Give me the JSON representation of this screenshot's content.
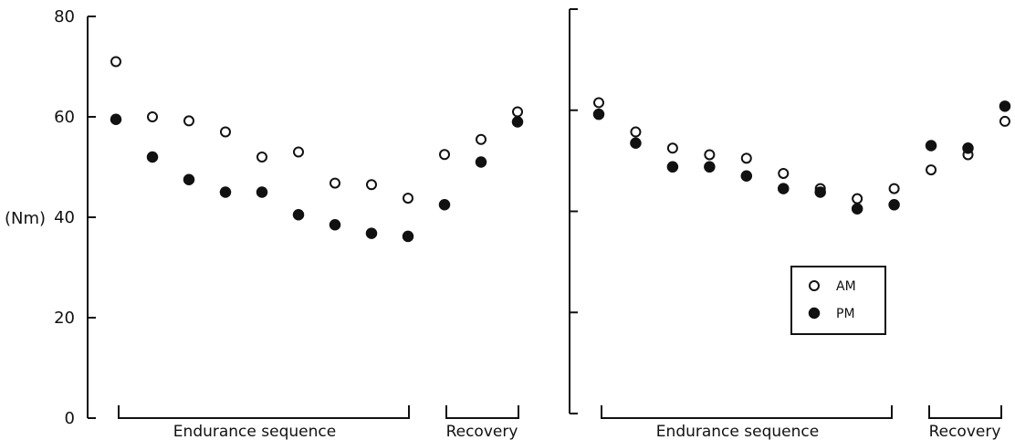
{
  "ylabel": "(Nm)",
  "legend": {
    "placement": "lower-right of right panel",
    "entries": [
      {
        "key": "am",
        "label": "AM"
      },
      {
        "key": "pm",
        "label": "PM"
      }
    ]
  },
  "chart_data": [
    {
      "type": "scatter",
      "panel": "left",
      "ylim": [
        0,
        80
      ],
      "yticks": [
        0,
        20,
        40,
        60,
        80
      ],
      "ytick_labels_shown": true,
      "groups": [
        {
          "label": "Endurance sequence",
          "from": 1,
          "to": 9
        },
        {
          "label": "Recovery",
          "from": 10,
          "to": 12
        }
      ],
      "x": [
        1,
        2,
        3,
        4,
        5,
        6,
        7,
        8,
        9,
        10,
        11,
        12
      ],
      "series": [
        {
          "name": "AM",
          "marker": "open-circle",
          "values": [
            71,
            60,
            59.2,
            57,
            52,
            53,
            46.8,
            46.5,
            43.8,
            52.5,
            55.5,
            61
          ]
        },
        {
          "name": "PM",
          "marker": "filled-circle",
          "values": [
            59.5,
            52,
            47.5,
            45,
            45,
            40.5,
            38.5,
            36.8,
            36.2,
            42.5,
            51,
            59
          ]
        }
      ]
    },
    {
      "type": "scatter",
      "panel": "right",
      "ylim": [
        0,
        80
      ],
      "yticks": [
        0,
        20,
        40,
        60,
        80
      ],
      "ytick_labels_shown": false,
      "groups": [
        {
          "label": "Endurance sequence",
          "from": 1,
          "to": 9
        },
        {
          "label": "Recovery",
          "from": 10,
          "to": 12
        }
      ],
      "x": [
        1,
        2,
        3,
        4,
        5,
        6,
        7,
        8,
        9,
        10,
        11,
        12
      ],
      "series": [
        {
          "name": "AM",
          "marker": "open-circle",
          "values": [
            61.5,
            55.7,
            52.5,
            51.2,
            50.5,
            47.5,
            44.5,
            42.5,
            44.5,
            48.2,
            51.2,
            57.8
          ]
        },
        {
          "name": "PM",
          "marker": "filled-circle",
          "values": [
            59.2,
            53.5,
            48.8,
            48.8,
            47,
            44.5,
            43.8,
            40.5,
            41.3,
            53,
            52.5,
            60.8
          ]
        }
      ]
    }
  ]
}
